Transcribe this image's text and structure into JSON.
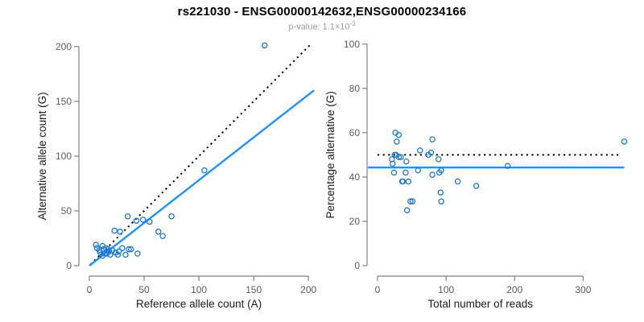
{
  "title": "rs221030 - ENSG00000142632,ENSG00000234166",
  "subtitle": {
    "prefix": "p-value: 1.1×10",
    "exponent": "-3"
  },
  "colors": {
    "point": "#1c78d2",
    "fit_line": "#1e90ff",
    "reference_line": "#000000",
    "axis": "#808080",
    "tick_label": "#5c5c5c",
    "axis_title": "#1a1a1a",
    "title": "#000000",
    "subtitle": "#9c9ca1",
    "background": "#ffffff"
  },
  "chart_data": [
    {
      "type": "scatter",
      "name": "allele-count-scatter",
      "xlabel": "Reference allele count (A)",
      "ylabel": "Alternative allele count (G)",
      "xlim": [
        0,
        205
      ],
      "ylim": [
        0,
        205
      ],
      "xticks": [
        0,
        50,
        100,
        150,
        200
      ],
      "yticks": [
        0,
        50,
        100,
        150,
        200
      ],
      "grid": false,
      "legend": "none",
      "points": [
        [
          6,
          19
        ],
        [
          7,
          16
        ],
        [
          9,
          14
        ],
        [
          10,
          12
        ],
        [
          12,
          18
        ],
        [
          12,
          9
        ],
        [
          13,
          15
        ],
        [
          14,
          11
        ],
        [
          15,
          16
        ],
        [
          16,
          11
        ],
        [
          17,
          15
        ],
        [
          18,
          13
        ],
        [
          19,
          10
        ],
        [
          21,
          14
        ],
        [
          23,
          32
        ],
        [
          24,
          12
        ],
        [
          26,
          10
        ],
        [
          27,
          13
        ],
        [
          28,
          31
        ],
        [
          30,
          16
        ],
        [
          33,
          10
        ],
        [
          36,
          15
        ],
        [
          38,
          15
        ],
        [
          44,
          11
        ],
        [
          35,
          45
        ],
        [
          43,
          41
        ],
        [
          49,
          42
        ],
        [
          55,
          40
        ],
        [
          63,
          31
        ],
        [
          67,
          27
        ],
        [
          75,
          45
        ],
        [
          105,
          87
        ],
        [
          160,
          201
        ]
      ],
      "lines": [
        {
          "name": "identity-line",
          "style": "dotted",
          "color_key": "reference_line",
          "x1": 1,
          "y1": 1,
          "x2": 203,
          "y2": 203
        },
        {
          "name": "fit-line",
          "style": "solid",
          "color_key": "fit_line",
          "x1": 0,
          "y1": 0,
          "x2": 205,
          "y2": 160
        }
      ]
    },
    {
      "type": "scatter",
      "name": "percentage-scatter",
      "xlabel": "Total number of reads",
      "ylabel": "Percentage alternative (G)",
      "xlim": [
        0,
        363
      ],
      "ylim": [
        0,
        101
      ],
      "xticks": [
        0,
        100,
        200,
        300
      ],
      "yticks": [
        0,
        20,
        40,
        60,
        80,
        100
      ],
      "grid": false,
      "legend": "none",
      "points": [
        [
          26,
          60
        ],
        [
          31,
          59
        ],
        [
          28,
          56
        ],
        [
          80,
          57
        ],
        [
          62,
          52
        ],
        [
          25,
          50
        ],
        [
          27,
          50
        ],
        [
          31,
          49
        ],
        [
          74,
          50
        ],
        [
          78,
          51
        ],
        [
          21,
          48
        ],
        [
          34,
          49
        ],
        [
          22,
          46
        ],
        [
          42,
          47
        ],
        [
          89,
          48
        ],
        [
          190,
          45
        ],
        [
          24,
          42
        ],
        [
          41,
          42
        ],
        [
          59,
          43
        ],
        [
          80,
          41
        ],
        [
          93,
          43
        ],
        [
          90,
          42
        ],
        [
          36,
          38
        ],
        [
          37,
          38
        ],
        [
          45,
          38
        ],
        [
          117,
          38
        ],
        [
          144,
          36
        ],
        [
          92,
          33
        ],
        [
          93,
          29
        ],
        [
          48,
          29
        ],
        [
          51,
          29
        ],
        [
          43,
          25
        ],
        [
          360,
          56
        ]
      ],
      "lines": [
        {
          "name": "expected-percentage-line",
          "style": "dotted",
          "color_key": "reference_line",
          "x1": 0,
          "y1": 50,
          "x2": 352,
          "y2": 50
        },
        {
          "name": "mean-percentage-line",
          "style": "solid",
          "color_key": "fit_line",
          "x1": -14,
          "y1": 44.3,
          "x2": 360,
          "y2": 44.3
        }
      ]
    }
  ]
}
